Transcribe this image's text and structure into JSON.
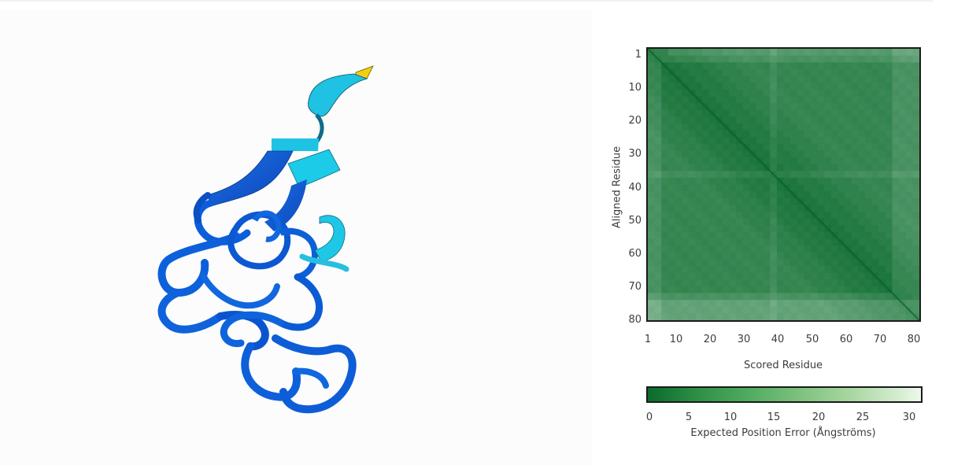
{
  "structure_viewer": {
    "colors": {
      "very_high": "#0c55d6",
      "high": "#1fc6e6",
      "low": "#f4d20d"
    }
  },
  "pae_plot": {
    "y_axis_label": "Aligned Residue",
    "x_axis_label": "Scored Residue",
    "y_ticks": [
      "1",
      "10",
      "20",
      "30",
      "40",
      "50",
      "60",
      "70",
      "80"
    ],
    "x_ticks": [
      "1",
      "10",
      "20",
      "30",
      "40",
      "50",
      "60",
      "70",
      "80"
    ],
    "residue_count": 81,
    "colorbar": {
      "label": "Expected Position Error (Ångströms)",
      "ticks": [
        "0",
        "5",
        "10",
        "15",
        "20",
        "25",
        "30"
      ],
      "min": 0,
      "max": 31,
      "color_low": "#0a6b2d",
      "color_high": "#eef8ec"
    }
  }
}
